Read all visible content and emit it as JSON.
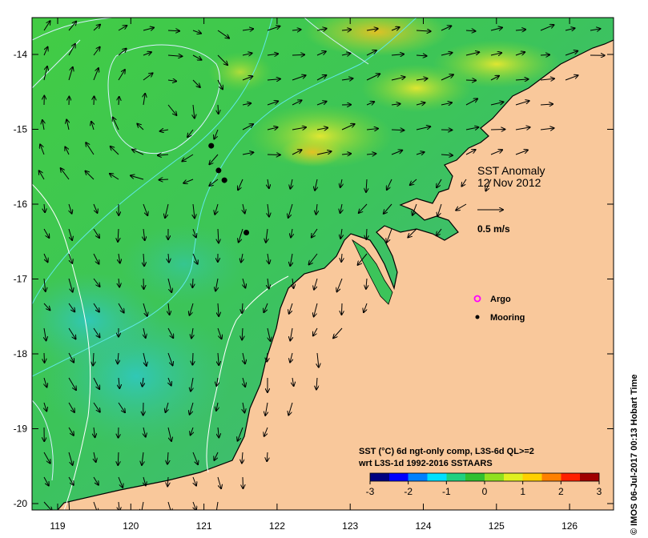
{
  "map": {
    "title": "SST Anomaly",
    "date": "12 Nov 2012",
    "velocity_scale_label": "0.5 m/s",
    "x_ticks": [
      "119",
      "120",
      "121",
      "122",
      "123",
      "124",
      "125",
      "126"
    ],
    "y_ticks": [
      "-14",
      "-15",
      "-16",
      "-17",
      "-18",
      "-19",
      "-20"
    ],
    "legend": {
      "argo_label": "Argo",
      "mooring_label": "Mooring",
      "argo_color": "#ff00ff",
      "mooring_color": "#000000"
    },
    "colorbar": {
      "caption_line1": "SST (°C) 6d ngt-only comp, L3S-6d QL>=2",
      "caption_line2": "wrt L3S-1d 1992-2016 SSTAARS",
      "ticks": [
        "-3",
        "-2",
        "-1",
        "0",
        "1",
        "2",
        "3"
      ],
      "colors": [
        "#000080",
        "#0000ff",
        "#0080ff",
        "#00e0ff",
        "#20d080",
        "#30c030",
        "#90e020",
        "#e0f020",
        "#ffd000",
        "#ff8000",
        "#ff2000",
        "#a00000"
      ]
    },
    "credit": "© IMOS 06-Jul-2017 00:13 Hobart Time",
    "land_color": "#f9c89b",
    "moorings": [
      {
        "lon": 121.1,
        "lat": -15.22
      },
      {
        "lon": 121.2,
        "lat": -15.55
      },
      {
        "lon": 121.28,
        "lat": -15.68
      },
      {
        "lon": 121.58,
        "lat": -16.38
      }
    ]
  }
}
